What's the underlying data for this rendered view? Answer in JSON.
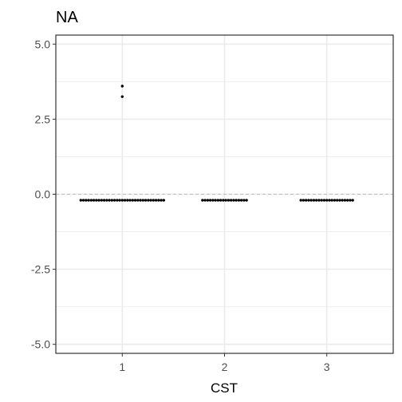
{
  "chart_data": {
    "type": "scatter",
    "title": "NA",
    "xlabel": "CST",
    "ylabel": "",
    "categories": [
      "1",
      "2",
      "3"
    ],
    "ylim": [
      -5.3,
      5.3
    ],
    "yticks": [
      5.0,
      2.5,
      0.0,
      -2.5,
      -5.0
    ],
    "ytick_labels": [
      "5.0",
      "2.5",
      "0.0",
      "-2.5",
      "-5.0"
    ],
    "reference_line": 0,
    "grid": true,
    "points": [
      {
        "category": "1",
        "y": -0.2,
        "count": 33
      },
      {
        "category": "1",
        "y": 3.6,
        "count": 1
      },
      {
        "category": "1",
        "y": 3.25,
        "count": 1
      },
      {
        "category": "2",
        "y": -0.2,
        "count": 18
      },
      {
        "category": "3",
        "y": -0.2,
        "count": 21
      }
    ],
    "colors": {
      "point": "#000000",
      "grid": "#ebebeb",
      "axis": "#333333",
      "refline": "#bdbdbd"
    }
  }
}
